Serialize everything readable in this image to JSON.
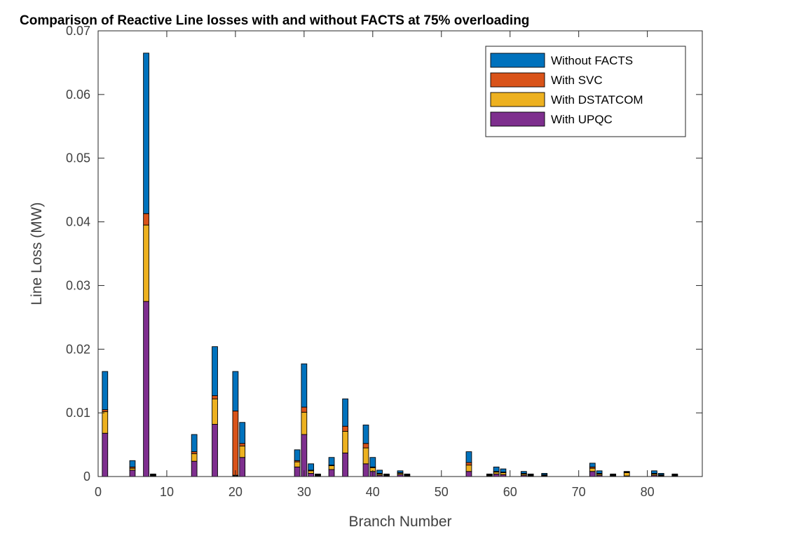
{
  "chart_data": {
    "type": "bar",
    "stacked": true,
    "title": "Comparison of Reactive Line losses with and without FACTS at 75% overloading",
    "xlabel": "Branch Number",
    "ylabel": "Line Loss (MW)",
    "xlim": [
      0,
      88
    ],
    "ylim": [
      0,
      0.07
    ],
    "xticks": [
      "0",
      "10",
      "20",
      "30",
      "40",
      "50",
      "60",
      "70",
      "80"
    ],
    "yticks": [
      "0",
      "0.01",
      "0.02",
      "0.03",
      "0.04",
      "0.05",
      "0.06",
      "0.07"
    ],
    "grid": false,
    "legend_position": "top-right",
    "x": [
      1,
      5,
      7,
      8,
      14,
      17,
      20,
      21,
      29,
      30,
      31,
      32,
      34,
      36,
      39,
      40,
      41,
      42,
      44,
      45,
      54,
      57,
      58,
      59,
      62,
      63,
      65,
      72,
      73,
      75,
      77,
      81,
      82,
      84
    ],
    "series": [
      {
        "name": "With UPQC",
        "color": "#7E2F8E",
        "values": [
          0.0068,
          0.001,
          0.0275,
          0.0001,
          0.0024,
          0.0082,
          0.0001,
          0.003,
          0.0015,
          0.0066,
          0.0005,
          0.0001,
          0.0011,
          0.0037,
          0.002,
          0.0008,
          0.0002,
          0.0001,
          0.0003,
          0.0001,
          0.0008,
          0.0001,
          0.0004,
          0.0003,
          0.0002,
          0.0001,
          0.0001,
          0.0008,
          0.0002,
          0.0001,
          0.0001,
          0.0002,
          0.0001,
          0.0001
        ]
      },
      {
        "name": "With DSTATCOM",
        "color": "#EDB120",
        "values": [
          0.0034,
          0.0003,
          0.012,
          0.0001,
          0.0012,
          0.004,
          0.0001,
          0.0018,
          0.0008,
          0.0035,
          0.0004,
          0.0001,
          0.0006,
          0.0034,
          0.0025,
          0.0006,
          0.0002,
          0.0001,
          0.0002,
          0.0001,
          0.001,
          0.0001,
          0.0003,
          0.0003,
          0.0002,
          0.0001,
          0.0001,
          0.0005,
          0.0002,
          0.0001,
          0.0005,
          0.0002,
          0.0001,
          0.0001
        ]
      },
      {
        "name": "With SVC",
        "color": "#D95319",
        "values": [
          0.0003,
          0.0002,
          0.0018,
          0.0001,
          0.0003,
          0.0005,
          0.0101,
          0.0004,
          0.0002,
          0.0008,
          0.0001,
          0.0001,
          0.0001,
          0.0008,
          0.0007,
          0.0001,
          0.0001,
          0.0001,
          0.0001,
          0.0001,
          0.0004,
          0.0001,
          0.0001,
          0.0001,
          0.0001,
          0.0001,
          0.0001,
          0.0002,
          0.0001,
          0.0001,
          0.0001,
          0.0001,
          0.0001,
          0.0001
        ]
      },
      {
        "name": "Without FACTS",
        "color": "#0072BD",
        "values": [
          0.006,
          0.001,
          0.0252,
          0.0001,
          0.0027,
          0.0077,
          0.0062,
          0.0033,
          0.0017,
          0.0068,
          0.001,
          0.0001,
          0.0012,
          0.0043,
          0.0029,
          0.0015,
          0.0005,
          0.0001,
          0.0003,
          0.0001,
          0.0017,
          0.0001,
          0.0007,
          0.0005,
          0.0003,
          0.0001,
          0.0002,
          0.0006,
          0.0004,
          0.0001,
          0.0001,
          0.0004,
          0.0002,
          0.0001
        ]
      }
    ],
    "legend": [
      "Without FACTS",
      "With SVC",
      "With DSTATCOM",
      "With UPQC"
    ]
  }
}
